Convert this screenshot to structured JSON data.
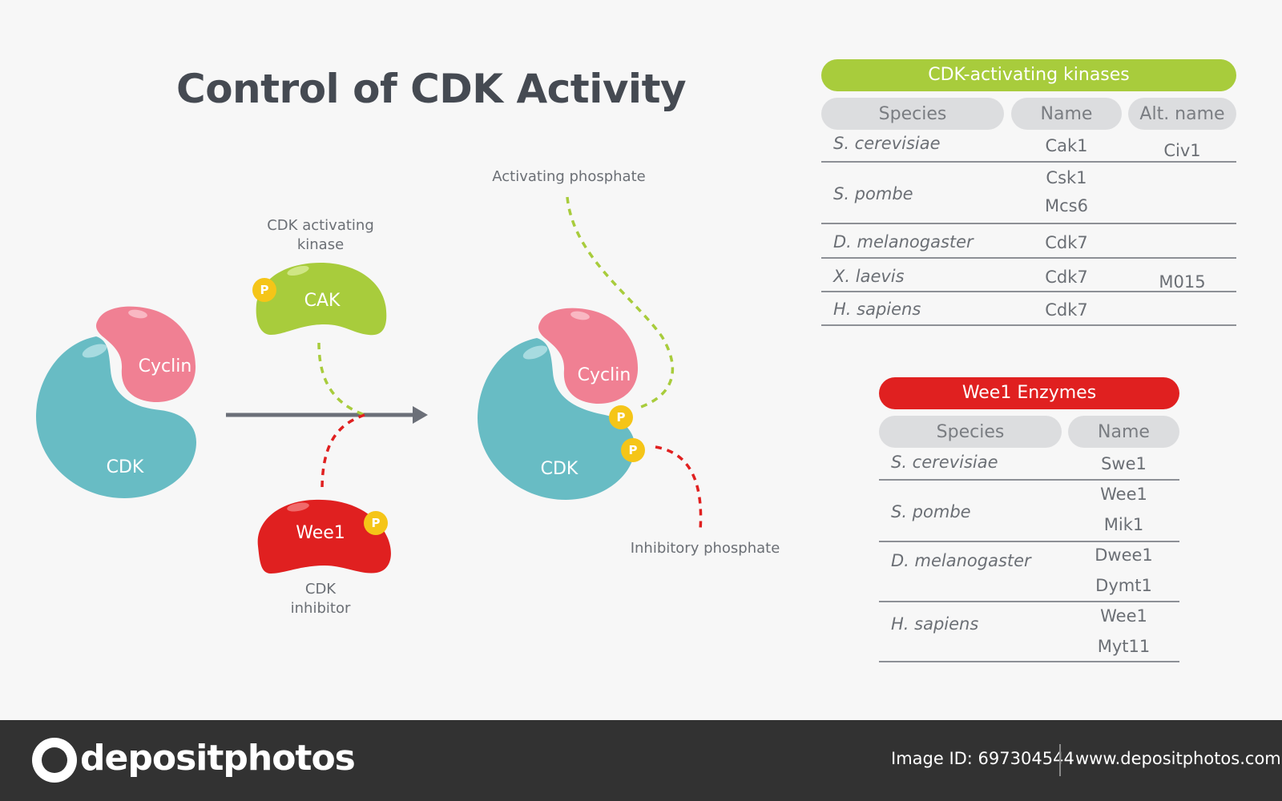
{
  "title": "Control of CDK Activity",
  "diagram": {
    "cdk_label": "CDK",
    "cyclin_label": "Cyclin",
    "cak_label": "CAK",
    "wee1_label": "Wee1",
    "phosphate_symbol": "P",
    "cak_caption_line1": "CDK activating",
    "cak_caption_line2": "kinase",
    "wee1_caption_line1": "CDK",
    "wee1_caption_line2": "inhibitor",
    "activating_phosphate": "Activating phosphate",
    "inhibitory_phosphate": "Inhibitory phosphate",
    "colors": {
      "cdk": "#68bcc4",
      "cyclin": "#f08093",
      "cak": "#a8cc3c",
      "wee1": "#e02020",
      "phosphate": "#f5c518",
      "arrow": "#6b6f78"
    }
  },
  "cak_table": {
    "header": "CDK-activating kinases",
    "header_color": "#a8cc3c",
    "columns": [
      "Species",
      "Name",
      "Alt. name"
    ],
    "rows": [
      {
        "species": "S. cerevisiae",
        "names": [
          "Cak1"
        ],
        "alt": "Civ1"
      },
      {
        "species": "S. pombe",
        "names": [
          "Csk1",
          "Mcs6"
        ],
        "alt": ""
      },
      {
        "species": "D. melanogaster",
        "names": [
          "Cdk7"
        ],
        "alt": ""
      },
      {
        "species": "X. laevis",
        "names": [
          "Cdk7"
        ],
        "alt": "M015"
      },
      {
        "species": "H. sapiens",
        "names": [
          "Cdk7"
        ],
        "alt": ""
      }
    ]
  },
  "wee1_table": {
    "header": "Wee1 Enzymes",
    "header_color": "#e02020",
    "columns": [
      "Species",
      "Name"
    ],
    "rows": [
      {
        "species": "S. cerevisiae",
        "names": [
          "Swe1"
        ]
      },
      {
        "species": "S. pombe",
        "names": [
          "Wee1",
          "Mik1"
        ]
      },
      {
        "species": "D. melanogaster",
        "names": [
          "Dwee1",
          "Dymt1"
        ]
      },
      {
        "species": "H. sapiens",
        "names": [
          "Wee1",
          "Myt11"
        ]
      }
    ]
  },
  "footer": {
    "brand": "depositphotos",
    "image_id": "Image ID: 697304544",
    "site": "www.depositphotos.com"
  }
}
